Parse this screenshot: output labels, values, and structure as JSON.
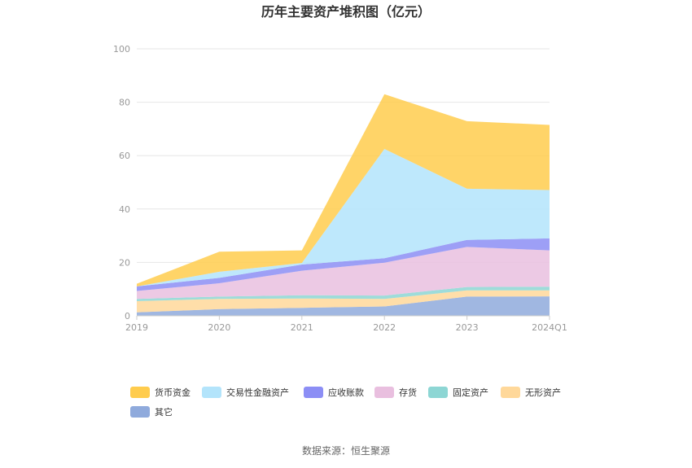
{
  "chart_data": {
    "type": "area",
    "stacked": true,
    "title": "历年主要资产堆积图（亿元）",
    "categories": [
      "2019",
      "2020",
      "2021",
      "2022",
      "2023",
      "2024Q1"
    ],
    "yticks": [
      "0",
      "20",
      "40",
      "60",
      "80",
      "100"
    ],
    "ylim": [
      0,
      100
    ],
    "grid": true,
    "legend_position": "bottom",
    "series": [
      {
        "name": "其它",
        "color": "#8faadc",
        "values": [
          1.3,
          2.5,
          3.0,
          3.5,
          7.2,
          7.3
        ]
      },
      {
        "name": "无形资产",
        "color": "#ffd89a",
        "values": [
          4.2,
          3.8,
          3.5,
          2.8,
          2.3,
          2.2
        ]
      },
      {
        "name": "固定资产",
        "color": "#8dd6d4",
        "values": [
          0.8,
          0.9,
          1.2,
          1.3,
          1.3,
          1.4
        ]
      },
      {
        "name": "存货",
        "color": "#e9bfdf",
        "values": [
          3.0,
          5.0,
          9.2,
          12.3,
          15.0,
          13.6
        ]
      },
      {
        "name": "应收账款",
        "color": "#8c8ef5",
        "values": [
          1.7,
          2.0,
          2.3,
          1.7,
          2.6,
          4.5
        ]
      },
      {
        "name": "交易性金融资产",
        "color": "#b3e4fb",
        "values": [
          0.0,
          2.3,
          0.6,
          40.9,
          19.2,
          18.1
        ]
      },
      {
        "name": "货币资金",
        "color": "#ffcc4d",
        "values": [
          1.0,
          7.5,
          4.7,
          20.5,
          25.3,
          24.4
        ]
      }
    ],
    "legend_order": [
      "货币资金",
      "交易性金融资产",
      "应收账款",
      "存货",
      "固定资产",
      "无形资产",
      "其它"
    ]
  },
  "footer": {
    "source": "数据来源：恒生聚源"
  }
}
